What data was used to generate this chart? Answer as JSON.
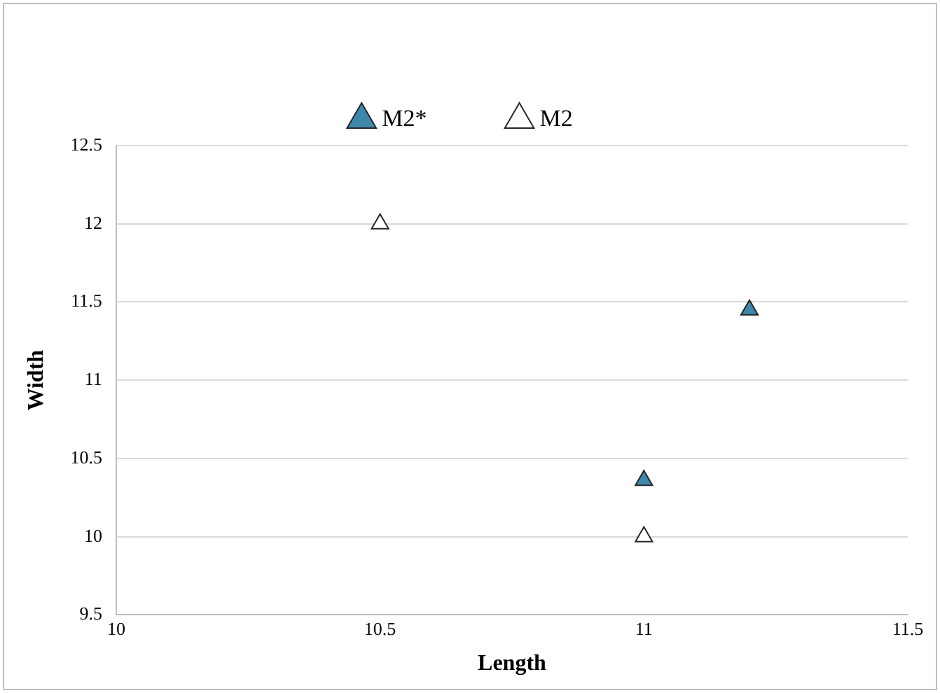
{
  "chart_data": {
    "type": "scatter",
    "xlabel": "Length",
    "ylabel": "Width",
    "series": [
      {
        "name": "M2*",
        "color": "#3f88ab",
        "x": [
          11.2,
          11
        ],
        "values": [
          11.45,
          10.36
        ]
      },
      {
        "name": "M2",
        "color": "#ffffff",
        "x": [
          10.5,
          11
        ],
        "values": [
          12,
          10
        ]
      }
    ],
    "xlim": [
      10,
      11.5
    ],
    "xticks": [
      10,
      10.5,
      11,
      11.5
    ],
    "ylim": [
      9.5,
      12.5
    ],
    "yticks": [
      9.5,
      10,
      10.5,
      11,
      11.5,
      12,
      12.5
    ],
    "grid": "y",
    "legend": "top",
    "marker": "triangle"
  }
}
